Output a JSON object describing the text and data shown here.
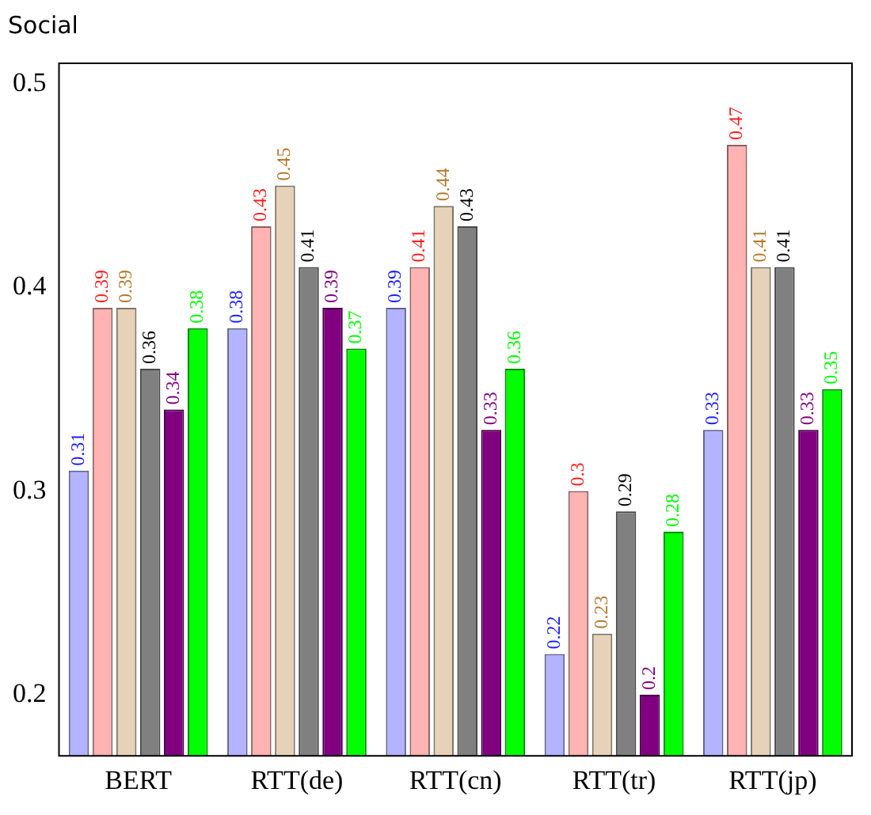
{
  "chart_data": {
    "type": "bar",
    "title": "Social",
    "categories": [
      "BERT",
      "RTT(de)",
      "RTT(cn)",
      "RTT(tr)",
      "RTT(jp)"
    ],
    "series": [
      {
        "color": "#b3b3ff",
        "values": [
          0.31,
          0.38,
          0.39,
          0.22,
          0.33
        ]
      },
      {
        "color": "#ffb3b3",
        "values": [
          0.39,
          0.43,
          0.41,
          0.3,
          0.47
        ]
      },
      {
        "color": "#e6d2b8",
        "values": [
          0.39,
          0.45,
          0.44,
          0.23,
          0.41
        ]
      },
      {
        "color": "#808080",
        "values": [
          0.36,
          0.41,
          0.43,
          0.29,
          0.41
        ]
      },
      {
        "color": "#800080",
        "values": [
          0.34,
          0.39,
          0.33,
          0.2,
          0.33
        ]
      },
      {
        "color": "#00ff00",
        "values": [
          0.38,
          0.37,
          0.36,
          0.28,
          0.35
        ]
      }
    ],
    "ylim": [
      0.17,
      0.51
    ],
    "yticks": [
      0.2,
      0.3,
      0.4,
      0.5
    ],
    "data_labels": true,
    "grid": false,
    "legend": false
  }
}
